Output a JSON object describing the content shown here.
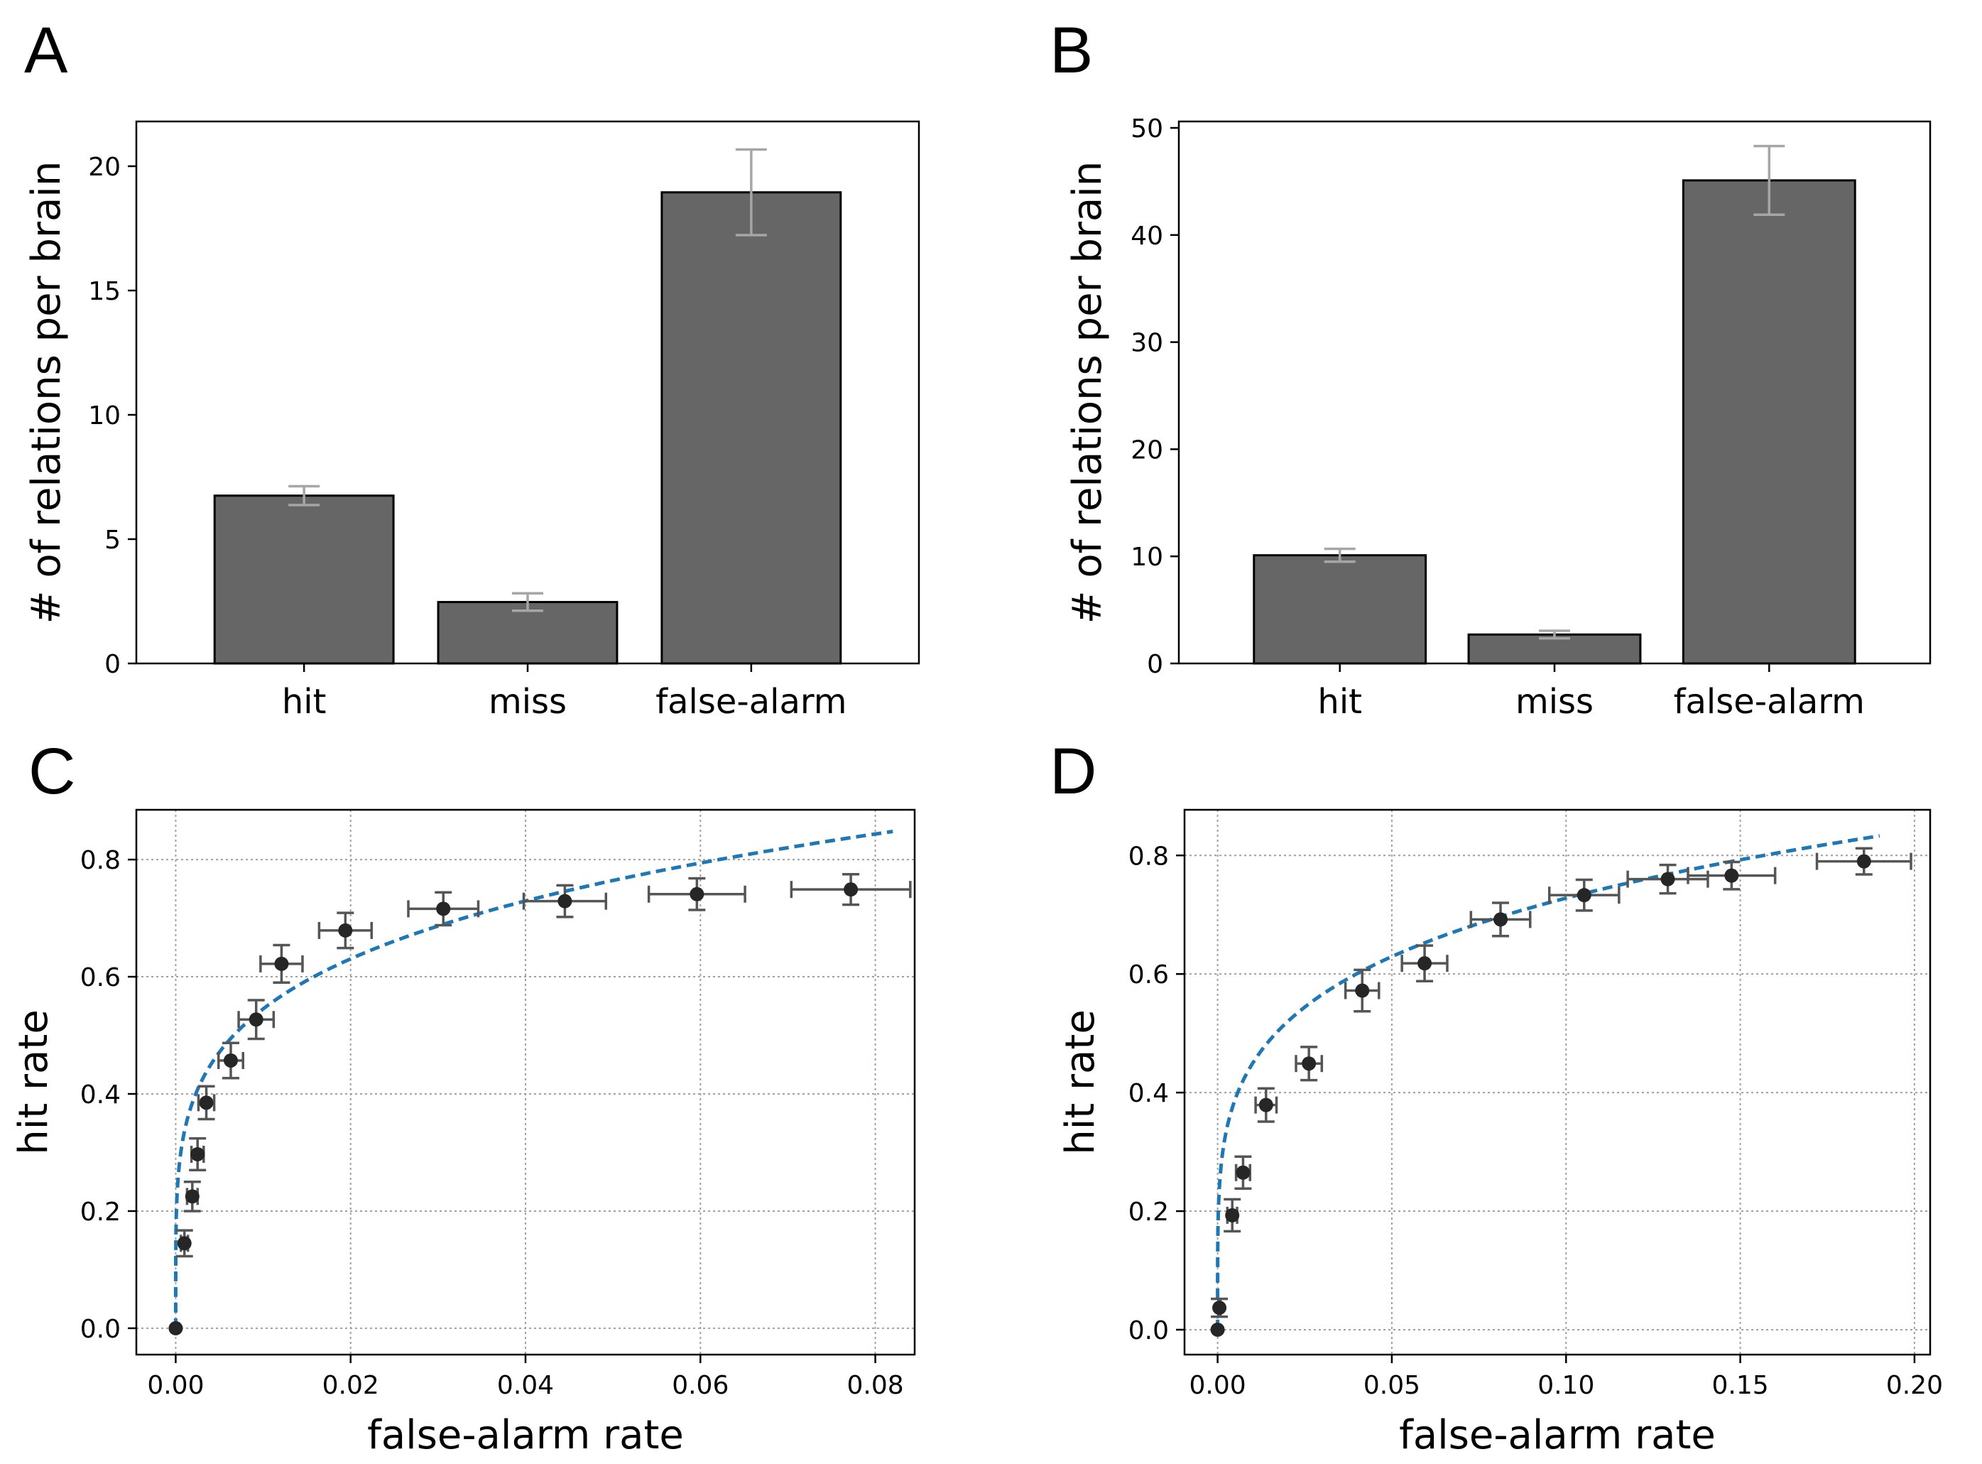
{
  "chart_data": [
    {
      "panel": "A",
      "type": "bar",
      "categories": [
        "hit",
        "miss",
        "false-alarm"
      ],
      "values": [
        6.75,
        2.47,
        18.95
      ],
      "errors": [
        0.38,
        0.35,
        1.72
      ],
      "xlabel": "",
      "ylabel": "# of relations per brain",
      "ylim": [
        0,
        21.8
      ],
      "yticks": [
        0,
        5,
        10,
        15,
        20
      ],
      "ytick_labels": [
        "0",
        "5",
        "10",
        "15",
        "20"
      ],
      "grid": false,
      "colors": {
        "bar": "#666666",
        "edge": "#000000",
        "errorbar": "#a6a6a6"
      }
    },
    {
      "panel": "B",
      "type": "bar",
      "categories": [
        "hit",
        "miss",
        "false-alarm"
      ],
      "values": [
        10.1,
        2.7,
        45.1
      ],
      "errors": [
        0.6,
        0.35,
        3.2
      ],
      "xlabel": "",
      "ylabel": "# of relations per brain",
      "ylim": [
        0,
        50.6
      ],
      "yticks": [
        0,
        10,
        20,
        30,
        40,
        50
      ],
      "ytick_labels": [
        "0",
        "10",
        "20",
        "30",
        "40",
        "50"
      ],
      "grid": false,
      "colors": {
        "bar": "#666666",
        "edge": "#000000",
        "errorbar": "#a6a6a6"
      }
    },
    {
      "panel": "C",
      "type": "scatter",
      "xlabel": "false-alarm rate",
      "ylabel": "hit rate",
      "xlim": [
        -0.0045,
        0.0845
      ],
      "ylim": [
        -0.045,
        0.885
      ],
      "xticks": [
        0,
        0.02,
        0.04,
        0.06,
        0.08
      ],
      "xtick_labels": [
        "0.00",
        "0.02",
        "0.04",
        "0.06",
        "0.08"
      ],
      "yticks": [
        0,
        0.2,
        0.4,
        0.6,
        0.8
      ],
      "ytick_labels": [
        "0.0",
        "0.2",
        "0.4",
        "0.6",
        "0.8"
      ],
      "grid": true,
      "points": [
        {
          "x": 0.0,
          "y": 0.0,
          "xerr": 0.0,
          "yerr": 0.0
        },
        {
          "x": 0.001,
          "y": 0.145,
          "xerr": 0.0004,
          "yerr": 0.022
        },
        {
          "x": 0.0019,
          "y": 0.225,
          "xerr": 0.0006,
          "yerr": 0.025
        },
        {
          "x": 0.0025,
          "y": 0.297,
          "xerr": 0.0007,
          "yerr": 0.027
        },
        {
          "x": 0.0035,
          "y": 0.385,
          "xerr": 0.0009,
          "yerr": 0.028
        },
        {
          "x": 0.0063,
          "y": 0.457,
          "xerr": 0.0014,
          "yerr": 0.03
        },
        {
          "x": 0.0092,
          "y": 0.527,
          "xerr": 0.002,
          "yerr": 0.033
        },
        {
          "x": 0.0121,
          "y": 0.622,
          "xerr": 0.0024,
          "yerr": 0.032
        },
        {
          "x": 0.0194,
          "y": 0.679,
          "xerr": 0.003,
          "yerr": 0.03
        },
        {
          "x": 0.0306,
          "y": 0.716,
          "xerr": 0.004,
          "yerr": 0.028
        },
        {
          "x": 0.0445,
          "y": 0.729,
          "xerr": 0.0047,
          "yerr": 0.027
        },
        {
          "x": 0.0596,
          "y": 0.741,
          "xerr": 0.0055,
          "yerr": 0.027
        },
        {
          "x": 0.0772,
          "y": 0.749,
          "xerr": 0.0068,
          "yerr": 0.026
        }
      ],
      "fit": {
        "style": "dashed",
        "x_max": 0.082,
        "exponent": 0.21
      },
      "colors": {
        "marker": "#262626",
        "errorbar": "#555555",
        "fit": "#1f77b4"
      }
    },
    {
      "panel": "D",
      "type": "scatter",
      "xlabel": "false-alarm rate",
      "ylabel": "hit rate",
      "xlim": [
        -0.0095,
        0.2045
      ],
      "ylim": [
        -0.042,
        0.877
      ],
      "xticks": [
        0,
        0.05,
        0.1,
        0.15,
        0.2
      ],
      "xtick_labels": [
        "0.00",
        "0.05",
        "0.10",
        "0.15",
        "0.20"
      ],
      "yticks": [
        0,
        0.2,
        0.4,
        0.6,
        0.8
      ],
      "ytick_labels": [
        "0.0",
        "0.2",
        "0.4",
        "0.6",
        "0.8"
      ],
      "grid": true,
      "points": [
        {
          "x": 0.0,
          "y": 0.0,
          "xerr": 0.0,
          "yerr": 0.0
        },
        {
          "x": 0.0005,
          "y": 0.037,
          "xerr": 0.0003,
          "yerr": 0.015
        },
        {
          "x": 0.0042,
          "y": 0.193,
          "xerr": 0.0014,
          "yerr": 0.027
        },
        {
          "x": 0.0073,
          "y": 0.265,
          "xerr": 0.002,
          "yerr": 0.027
        },
        {
          "x": 0.0139,
          "y": 0.379,
          "xerr": 0.003,
          "yerr": 0.028
        },
        {
          "x": 0.0262,
          "y": 0.449,
          "xerr": 0.0037,
          "yerr": 0.028
        },
        {
          "x": 0.0415,
          "y": 0.572,
          "xerr": 0.0048,
          "yerr": 0.035
        },
        {
          "x": 0.0594,
          "y": 0.618,
          "xerr": 0.0065,
          "yerr": 0.03
        },
        {
          "x": 0.0812,
          "y": 0.692,
          "xerr": 0.0085,
          "yerr": 0.028
        },
        {
          "x": 0.1052,
          "y": 0.733,
          "xerr": 0.01,
          "yerr": 0.026
        },
        {
          "x": 0.1292,
          "y": 0.76,
          "xerr": 0.0115,
          "yerr": 0.024
        },
        {
          "x": 0.1475,
          "y": 0.766,
          "xerr": 0.0125,
          "yerr": 0.023
        },
        {
          "x": 0.1855,
          "y": 0.79,
          "xerr": 0.0135,
          "yerr": 0.022
        }
      ],
      "fit": {
        "style": "dashed",
        "x_max": 0.19,
        "exponent": 0.21
      },
      "colors": {
        "marker": "#262626",
        "errorbar": "#555555",
        "fit": "#1f77b4"
      }
    }
  ]
}
